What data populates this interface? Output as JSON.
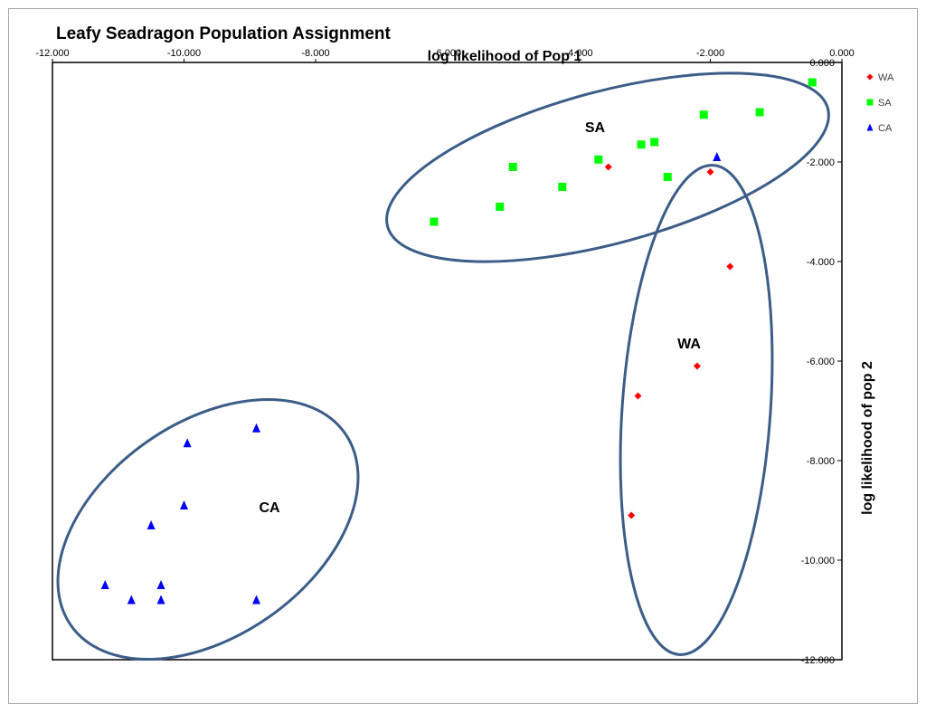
{
  "chart_data": {
    "type": "scatter",
    "title": "Leafy Seadragon Population Assignment",
    "xlabel": "log likelihood of Pop 1",
    "ylabel": "log likelihood of pop 2",
    "xlim": [
      -12,
      0
    ],
    "ylim": [
      -12,
      0
    ],
    "x_ticks": [
      "-12.000",
      "-10.000",
      "-8.000",
      "-6.000",
      "-4.000",
      "-2.000",
      "0.000"
    ],
    "y_ticks": [
      "0.000",
      "-2.000",
      "-4.000",
      "-6.000",
      "-8.000",
      "-10.000",
      "-12.000"
    ],
    "grid": false,
    "legend_position": "right",
    "series": [
      {
        "name": "WA",
        "marker": "diamond",
        "color": "#ff0000",
        "points": [
          [
            -3.55,
            -2.1
          ],
          [
            -2.0,
            -2.2
          ],
          [
            -1.7,
            -4.1
          ],
          [
            -2.2,
            -6.1
          ],
          [
            -3.1,
            -6.7
          ],
          [
            -3.2,
            -9.1
          ]
        ]
      },
      {
        "name": "SA",
        "marker": "square",
        "color": "#00ff00",
        "points": [
          [
            -6.2,
            -3.2
          ],
          [
            -5.2,
            -2.9
          ],
          [
            -5.0,
            -2.1
          ],
          [
            -4.25,
            -2.5
          ],
          [
            -3.7,
            -1.95
          ],
          [
            -3.05,
            -1.65
          ],
          [
            -2.85,
            -1.6
          ],
          [
            -2.65,
            -2.3
          ],
          [
            -2.1,
            -1.05
          ],
          [
            -1.25,
            -1.0
          ],
          [
            -0.45,
            -0.4
          ]
        ]
      },
      {
        "name": "CA",
        "marker": "triangle",
        "color": "#0000ff",
        "points": [
          [
            -1.9,
            -1.9
          ],
          [
            -8.9,
            -7.35
          ],
          [
            -9.95,
            -7.65
          ],
          [
            -10.0,
            -8.9
          ],
          [
            -10.5,
            -9.3
          ],
          [
            -11.2,
            -10.5
          ],
          [
            -10.35,
            -10.5
          ],
          [
            -10.8,
            -10.8
          ],
          [
            -10.35,
            -10.8
          ],
          [
            -8.9,
            -10.8
          ]
        ]
      }
    ],
    "annotations": [
      "SA",
      "WA",
      "CA"
    ]
  }
}
